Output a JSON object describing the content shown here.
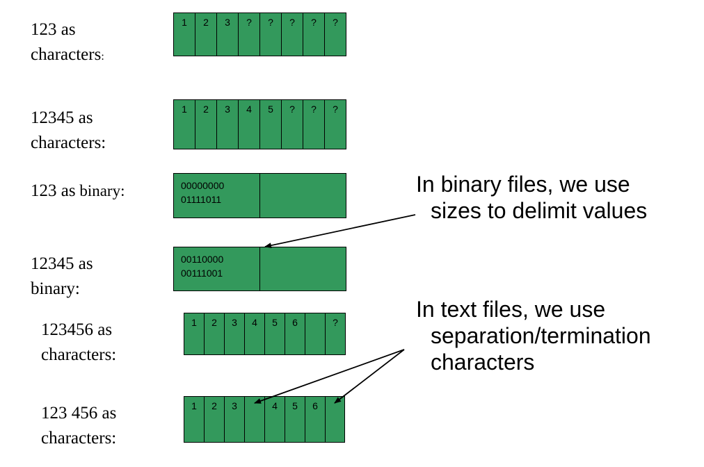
{
  "rows": [
    {
      "label_l1": "123 as",
      "label_l2": "characters",
      "label_l2_suffix": ":",
      "cells": [
        "1",
        "2",
        "3",
        "?",
        "?",
        "?",
        "?",
        "?"
      ]
    },
    {
      "label_l1": "12345 as",
      "label_l2": "characters:",
      "cells": [
        "1",
        "2",
        "3",
        "4",
        "5",
        "?",
        "?",
        "?"
      ]
    },
    {
      "label_l1": "123 as",
      "label_l1_suffix": " binary:",
      "binary": [
        "00000000",
        "01111011"
      ]
    },
    {
      "label_l1": "12345 as",
      "label_l2": "binary:",
      "binary": [
        "00110000",
        "00111001"
      ]
    },
    {
      "label_l1": "123456 as",
      "label_l2": "characters:",
      "cells": [
        "1",
        "2",
        "3",
        "4",
        "5",
        "6",
        "",
        "?"
      ]
    },
    {
      "label_l1": "123 456 as",
      "label_l2": "characters:",
      "cells": [
        "1",
        "2",
        "3",
        "",
        "4",
        "5",
        "6",
        ""
      ]
    }
  ],
  "notes": {
    "binary": {
      "line1": "In binary files, we use",
      "line2": "sizes to delimit values"
    },
    "text": {
      "line1": "In text files, we use",
      "line2": "separation/termination",
      "line3": "characters"
    }
  },
  "colors": {
    "cell_fill": "#33995c",
    "border": "#000000",
    "arrow": "#000000"
  }
}
